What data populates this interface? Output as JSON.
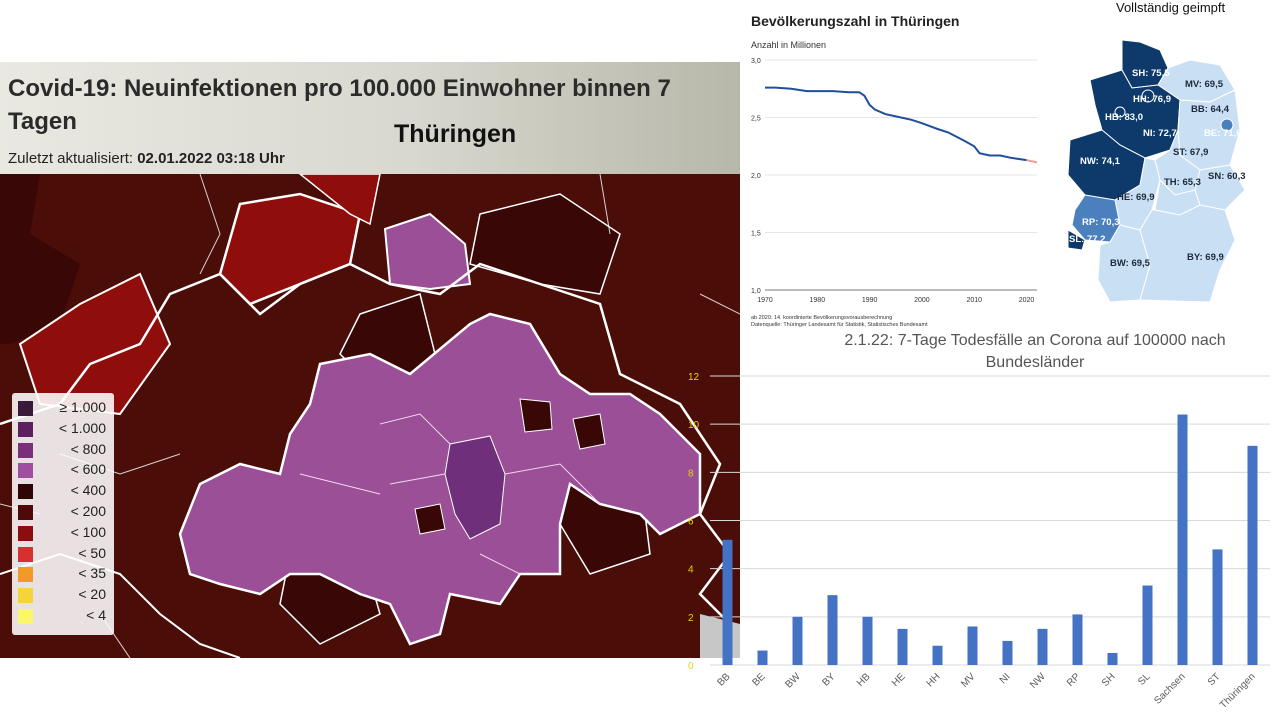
{
  "map": {
    "title": "Covid-19: Neuinfektionen pro 100.000 Einwohner binnen 7 Tagen",
    "region": "Thüringen",
    "updated_label": "Zuletzt aktualisiert:",
    "updated_value": "02.01.2022 03:18 Uhr",
    "colors": {
      "dark_red": "#4a0d08",
      "red": "#8f0e0b",
      "purple": "#9b4f96",
      "dark_purple": "#6f2f7a",
      "border": "#ffffff"
    },
    "legend": [
      {
        "label": "≥ 1.000",
        "color": "#3a1a3a"
      },
      {
        "label": "< 1.000",
        "color": "#5e1f5e"
      },
      {
        "label": "< 800",
        "color": "#7b2f7b"
      },
      {
        "label": "< 600",
        "color": "#a04ea0"
      },
      {
        "label": "< 400",
        "color": "#2e0606"
      },
      {
        "label": "< 200",
        "color": "#4e0a0a"
      },
      {
        "label": "< 100",
        "color": "#8b0e0e"
      },
      {
        "label": "< 50",
        "color": "#d73030"
      },
      {
        "label": "< 35",
        "color": "#f29a28"
      },
      {
        "label": "< 20",
        "color": "#f5d33a"
      },
      {
        "label": "< 4",
        "color": "#fbf66a"
      }
    ]
  },
  "population": {
    "title": "Bevölkerungszahl in Thüringen",
    "ylabel": "Anzahl in Millionen",
    "note1": "ab 2020: 14. koordinierte Bevölkerungsvorausberechnung",
    "note2": "Datenquelle: Thüringer Landesamt für Statistik, Statistisches Bundesamt",
    "ylim": [
      1.0,
      3.0
    ],
    "yticks": [
      "1,0",
      "1,5",
      "2,0",
      "2,5",
      "3,0"
    ],
    "xticks": [
      "1970",
      "1980",
      "1990",
      "2000",
      "2010",
      "2020"
    ],
    "chart_data": {
      "type": "line",
      "x": [
        1970,
        1972,
        1975,
        1978,
        1980,
        1983,
        1986,
        1988,
        1989,
        1990,
        1991,
        1993,
        1995,
        1998,
        2000,
        2003,
        2005,
        2008,
        2010,
        2011,
        2013,
        2015,
        2017,
        2020
      ],
      "values": [
        2.76,
        2.76,
        2.75,
        2.73,
        2.73,
        2.73,
        2.72,
        2.72,
        2.69,
        2.61,
        2.57,
        2.53,
        2.51,
        2.48,
        2.45,
        2.4,
        2.37,
        2.3,
        2.25,
        2.19,
        2.17,
        2.17,
        2.15,
        2.13
      ],
      "projection_x": [
        2020,
        2022
      ],
      "projection_values": [
        2.13,
        2.11
      ],
      "xlim": [
        1970,
        2022
      ],
      "ylim": [
        1.0,
        3.0
      ],
      "line_color": "#1f4e9c",
      "projection_color": "#e9a0a0"
    }
  },
  "vaccination": {
    "title": "Vollständig geimpft",
    "colors": {
      "high": "#0d3a6b",
      "mid": "#4a80bd",
      "low": "#c9dff4"
    },
    "states": [
      {
        "label": "SH: 75,5",
        "code": "SH",
        "value": 75.5
      },
      {
        "label": "MV: 69,5",
        "code": "MV",
        "value": 69.5
      },
      {
        "label": "HH: 76,9",
        "code": "HH",
        "value": 76.9
      },
      {
        "label": "HB: 83,0",
        "code": "HB",
        "value": 83.0
      },
      {
        "label": "BB: 64,4",
        "code": "BB",
        "value": 64.4
      },
      {
        "label": "NI: 72,7",
        "code": "NI",
        "value": 72.7
      },
      {
        "label": "BE: 71,6",
        "code": "BE",
        "value": 71.6
      },
      {
        "label": "ST: 67,9",
        "code": "ST",
        "value": 67.9
      },
      {
        "label": "NW: 74,1",
        "code": "NW",
        "value": 74.1
      },
      {
        "label": "TH: 65,3",
        "code": "TH",
        "value": 65.3
      },
      {
        "label": "SN: 60,3",
        "code": "SN",
        "value": 60.3
      },
      {
        "label": "HE: 69,9",
        "code": "HE",
        "value": 69.9
      },
      {
        "label": "RP: 70,3",
        "code": "RP",
        "value": 70.3
      },
      {
        "label": "SL: 77,2",
        "code": "SL",
        "value": 77.2
      },
      {
        "label": "BW: 69,5",
        "code": "BW",
        "value": 69.5
      },
      {
        "label": "BY: 69,9",
        "code": "BY",
        "value": 69.9
      }
    ]
  },
  "deaths": {
    "title": "2.1.22: 7-Tage Todesfälle an Corona auf 100000  nach Bundesländer",
    "chart_data": {
      "type": "bar",
      "categories": [
        "BB",
        "BE",
        "BW",
        "BY",
        "HB",
        "HE",
        "HH",
        "MV",
        "NI",
        "NW",
        "RP",
        "SH",
        "SL",
        "Sachsen",
        "ST",
        "Thüringen"
      ],
      "values": [
        5.2,
        0.6,
        2.0,
        2.9,
        2.0,
        1.5,
        0.8,
        1.6,
        1.0,
        1.5,
        2.1,
        0.5,
        3.3,
        10.4,
        4.8,
        9.1
      ],
      "ylim": [
        0,
        12
      ],
      "yticks": [
        "0",
        "2",
        "4",
        "6",
        "8",
        "10",
        "12"
      ],
      "bar_color": "#4472c4",
      "tick_color": "#e6d800",
      "grid": true
    }
  }
}
